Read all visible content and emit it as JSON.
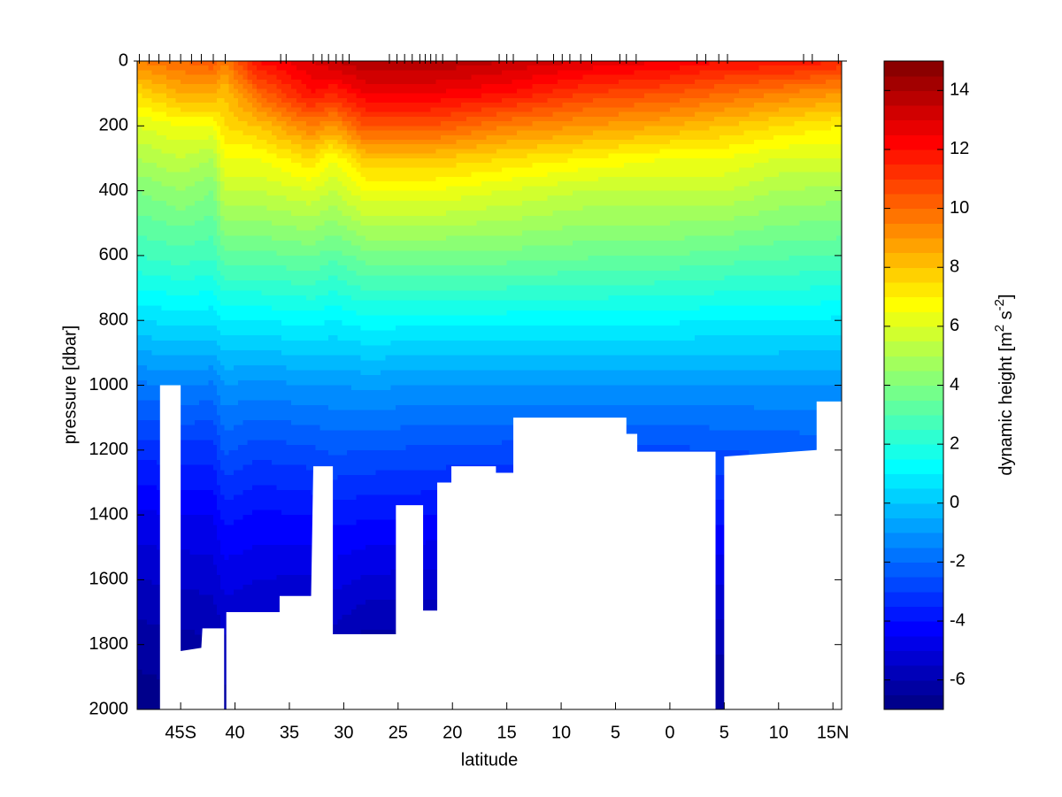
{
  "chart_data": {
    "type": "contour",
    "colormap": "jet",
    "xlabel": "latitude",
    "ylabel": "pressure [dbar]",
    "colorbar_label": [
      "dynamic height [m",
      "2",
      " s",
      "-2",
      "]"
    ],
    "xlim": [
      -49,
      15.8
    ],
    "ylim": [
      0,
      2000
    ],
    "y_reversed": true,
    "xticks": [
      {
        "value": -45,
        "label": "45S"
      },
      {
        "value": -40,
        "label": "40"
      },
      {
        "value": -35,
        "label": "35"
      },
      {
        "value": -30,
        "label": "30"
      },
      {
        "value": -25,
        "label": "25"
      },
      {
        "value": -20,
        "label": "20"
      },
      {
        "value": -15,
        "label": "15"
      },
      {
        "value": -10,
        "label": "10"
      },
      {
        "value": -5,
        "label": "5"
      },
      0,
      5,
      10,
      {
        "value": 15,
        "label": "15N"
      }
    ],
    "yticks": [
      0,
      200,
      400,
      600,
      800,
      1000,
      1200,
      1400,
      1600,
      1800,
      2000
    ],
    "clim": [
      -7,
      15
    ],
    "cticks": [
      -6,
      -4,
      -2,
      0,
      2,
      4,
      6,
      8,
      10,
      12,
      14
    ],
    "field": {
      "lat": [
        -49,
        -45,
        -42,
        -41,
        -38,
        -33,
        -31,
        -28,
        -22,
        -15,
        -8,
        0,
        5,
        10,
        15.8
      ],
      "pressure": [
        0,
        100,
        200,
        300,
        400,
        600,
        800,
        1000,
        1200,
        1400,
        1600,
        1800,
        2000
      ],
      "values": [
        [
          9.5,
          10,
          10.5,
          9.5,
          12,
          13,
          13.5,
          14,
          14,
          13.5,
          13,
          12.5,
          12,
          12,
          11.5
        ],
        [
          7.5,
          8.5,
          8.5,
          8,
          10,
          12,
          11.5,
          12.5,
          12.5,
          12,
          11,
          10.5,
          10,
          9.5,
          9
        ],
        [
          6,
          6.5,
          6.5,
          7.5,
          8,
          9.5,
          9,
          10.5,
          10.5,
          9.5,
          9,
          8.5,
          8,
          7.5,
          7
        ],
        [
          5,
          5.5,
          5,
          6.5,
          6.5,
          7.5,
          6.5,
          8,
          8,
          7.5,
          7,
          6.5,
          6.5,
          6,
          6
        ],
        [
          4,
          4.5,
          4,
          5.5,
          5.5,
          6,
          5.5,
          6.5,
          6.5,
          6,
          5.5,
          5.5,
          5.5,
          5,
          4.8
        ],
        [
          2.5,
          2.8,
          2.6,
          3.3,
          3.3,
          3.6,
          3.2,
          3.8,
          3.8,
          3.8,
          3.6,
          3.5,
          3.3,
          3.1,
          3
        ],
        [
          0.5,
          0.7,
          0.6,
          1,
          1,
          1.2,
          1,
          1.3,
          1.2,
          1.2,
          1.2,
          1.1,
          1,
          1,
          0.9
        ],
        [
          -1.6,
          -1.5,
          -1.6,
          -1,
          -1.2,
          -1,
          -1,
          -0.9,
          -1,
          -1,
          -1,
          -1,
          -1,
          -1,
          -1
        ],
        [
          -3.3,
          -3.2,
          -3.2,
          -2.4,
          -2.8,
          -2.6,
          -2.4,
          -2.5,
          -2.6,
          -2.7,
          -2.7,
          -2.6,
          -2.5,
          -2.4,
          -2.3
        ],
        [
          -4.6,
          -4.5,
          -4.5,
          -3.8,
          -4.1,
          -4,
          -3.8,
          -3.9,
          -4,
          -4.1,
          -4,
          -3.9,
          -3.8,
          -3.7,
          -3.6
        ],
        [
          -5.5,
          -5.4,
          -5.3,
          -4.8,
          -5,
          -5.1,
          -4.8,
          -5.1,
          -5.2,
          -5.2,
          -5.1,
          -5,
          -4.9,
          -4.8,
          -4.7
        ],
        [
          -6.3,
          -6.2,
          -6.1,
          -5.6,
          -5.8,
          -6,
          -5.8,
          -6.3,
          -6.3,
          -6.2,
          -6.1,
          -6,
          -5.9,
          -5.8,
          -5.7
        ],
        [
          -6.8,
          -6.7,
          -6.6,
          -6.2,
          -6.4,
          -6.6,
          -6.4,
          -6.8,
          -6.8,
          -6.8,
          -6.7,
          -6.6,
          -6.5,
          -6.4,
          -6.3
        ]
      ]
    },
    "bottom": {
      "lat": [
        -46.9,
        -46.9,
        -45.0,
        -45.0,
        -43.1,
        -43.0,
        -41.0,
        -41.0,
        -40.8,
        -40.8,
        -35.9,
        -35.9,
        -33.0,
        -32.8,
        -31.0,
        -31.0,
        -25.2,
        -25.2,
        -22.7,
        -22.7,
        -21.4,
        -21.4,
        -20.1,
        -20.1,
        -16.0,
        -16.0,
        -14.4,
        -14.4,
        -4.0,
        -4.0,
        -3.0,
        -3.0,
        4.2,
        4.2,
        5.0,
        5.0,
        13.5,
        13.5,
        15.8,
        15.8
      ],
      "pressure": [
        2000,
        1000,
        1000,
        1820,
        1810,
        1750,
        1750,
        2000,
        2000,
        1700,
        1700,
        1650,
        1650,
        1250,
        1250,
        1768,
        1768,
        1370,
        1370,
        1695,
        1695,
        1300,
        1300,
        1250,
        1250,
        1270,
        1270,
        1100,
        1100,
        1150,
        1150,
        1205,
        1205,
        2000,
        2000,
        1220,
        1200,
        1050,
        1050,
        2000
      ]
    },
    "stations": [
      -48.8,
      -47.9,
      -47.0,
      -46.0,
      -45.0,
      -44.0,
      -43.1,
      -42.0,
      -40.9,
      -35.8,
      -35.3,
      -32.8,
      -32.0,
      -31.4,
      -30.7,
      -30.1,
      -29.5,
      -25.8,
      -25.1,
      -24.4,
      -23.7,
      -23.0,
      -22.5,
      -22.0,
      -21.5,
      -20.9,
      -19.6,
      -15.7,
      -15.0,
      -14.4,
      -12.2,
      -10.7,
      -9.9,
      -9.2,
      -8.2,
      -7.2,
      -4.6,
      -4.0,
      -3.1,
      2.5,
      3.3,
      4.5,
      5.3,
      12.3,
      13.1,
      15.5
    ]
  }
}
